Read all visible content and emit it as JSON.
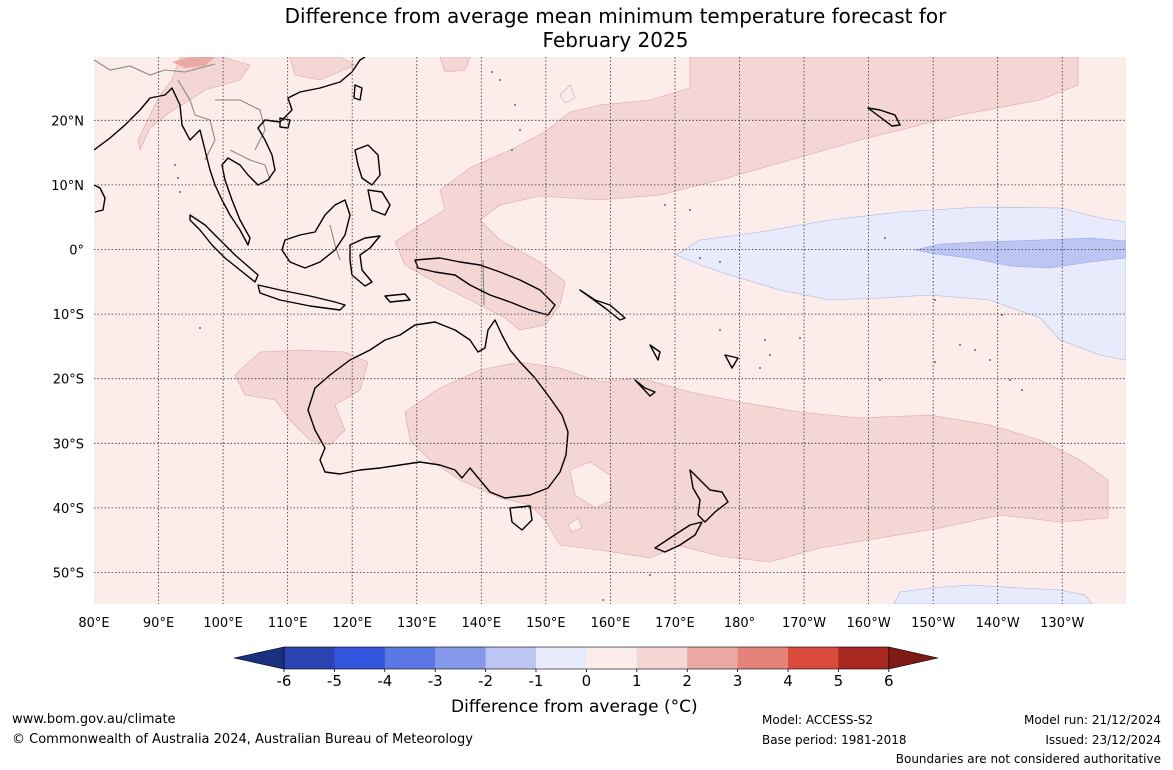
{
  "title_line1": "Difference from average mean minimum temperature forecast for",
  "title_line2": "February 2025",
  "lat_labels": [
    "20°N",
    "10°N",
    "0°",
    "10°S",
    "20°S",
    "30°S",
    "40°S",
    "50°S"
  ],
  "lon_labels": [
    "80°E",
    "90°E",
    "100°E",
    "110°E",
    "120°E",
    "130°E",
    "140°E",
    "150°E",
    "160°E",
    "170°E",
    "180°",
    "170°W",
    "160°W",
    "150°W",
    "140°W",
    "130°W"
  ],
  "colorbar": {
    "ticks": [
      "-6",
      "-5",
      "-4",
      "-3",
      "-2",
      "-1",
      "0",
      "1",
      "2",
      "3",
      "4",
      "5",
      "6"
    ],
    "colors": [
      "#1b2f7f",
      "#2a43b0",
      "#3355dd",
      "#5b77e3",
      "#8598e9",
      "#bdc6f3",
      "#e8ebfc",
      "#fcecea",
      "#f4d6d4",
      "#eaa9a3",
      "#e3837a",
      "#d94a3c",
      "#a8271f",
      "#7e1b14"
    ],
    "title": "Difference from average (°C)"
  },
  "footer": {
    "url": "www.bom.gov.au/climate",
    "copyright": "© Commonwealth of Australia 2024, Australian Bureau of Meteorology",
    "model": "Model: ACCESS-S2",
    "base_period": "Base period: 1981-2018",
    "model_run": "Model run: 21/12/2024",
    "issued": "Issued: 23/12/2024",
    "disclaimer": "Boundaries are not considered authoritative"
  }
}
